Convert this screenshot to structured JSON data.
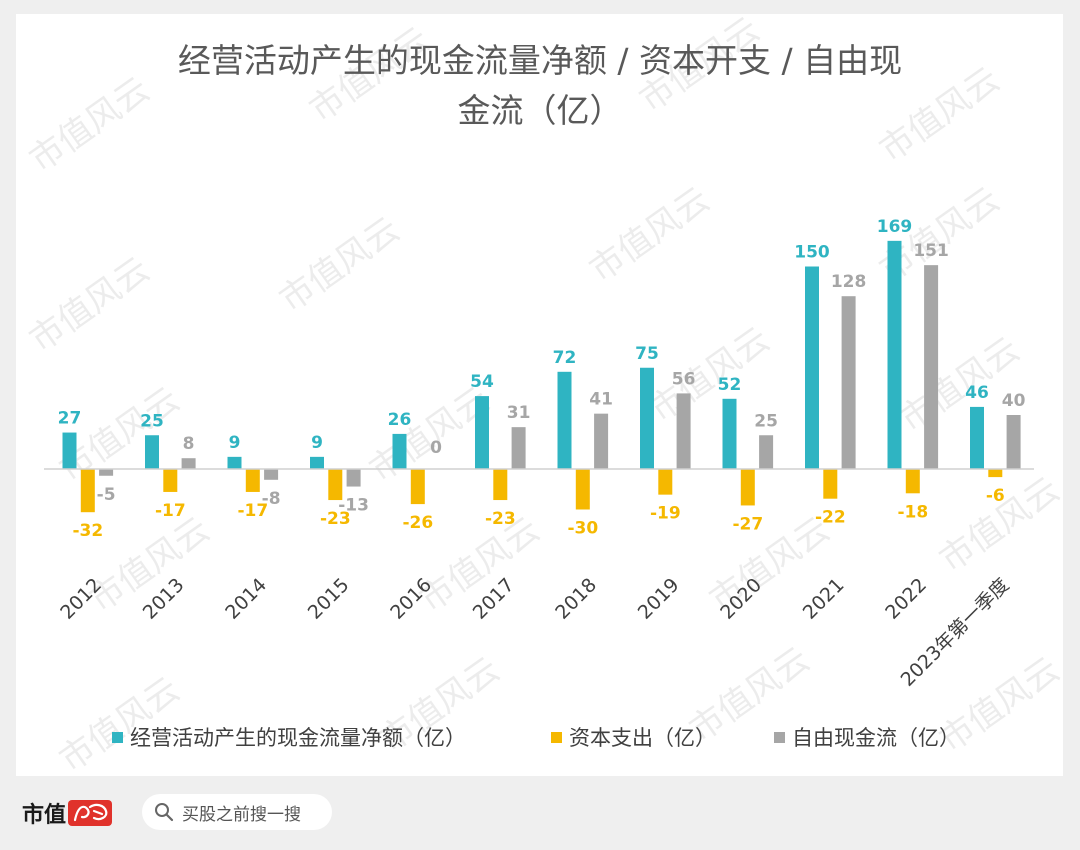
{
  "chart_data": {
    "type": "bar",
    "title_lines": [
      "经营活动产生的现金流量净额 / 资本开支 / 自由现",
      "金流（亿）"
    ],
    "categories": [
      "2012",
      "2013",
      "2014",
      "2015",
      "2016",
      "2017",
      "2018",
      "2019",
      "2020",
      "2021",
      "2022",
      "2023年第一季度"
    ],
    "series": [
      {
        "name": "经营活动产生的现金流量净额（亿）",
        "color": "#2fb4c2",
        "values": [
          27,
          25,
          9,
          9,
          26,
          54,
          72,
          75,
          52,
          150,
          169,
          46
        ],
        "labels": [
          "27",
          "25",
          "9",
          "9",
          "26",
          "54",
          "72",
          "75",
          "52",
          "150",
          "169",
          "46"
        ]
      },
      {
        "name": "资本支出（亿）",
        "color": "#f5b800",
        "values": [
          -32,
          -17,
          -17,
          -23,
          -26,
          -23,
          -30,
          -19,
          -27,
          -22,
          -18,
          -6
        ],
        "labels": [
          "-32",
          "-17",
          "-17",
          "-23",
          "-26",
          "-23",
          "-30",
          "-19",
          "-27",
          "-22",
          "-18",
          "-6"
        ]
      },
      {
        "name": "自由现金流（亿）",
        "color": "#a6a6a6",
        "values": [
          -5,
          8,
          -8,
          -13,
          0,
          31,
          41,
          56,
          25,
          128,
          151,
          40
        ],
        "labels": [
          "-5",
          "8",
          "-8",
          "-13",
          "0",
          "31",
          "41",
          "56",
          "25",
          "128",
          "151",
          "40"
        ]
      }
    ],
    "legend_position": "bottom",
    "grid": false
  },
  "watermark": "市值风云",
  "footer": {
    "brand": "市值",
    "search_placeholder": "买股之前搜一搜"
  }
}
